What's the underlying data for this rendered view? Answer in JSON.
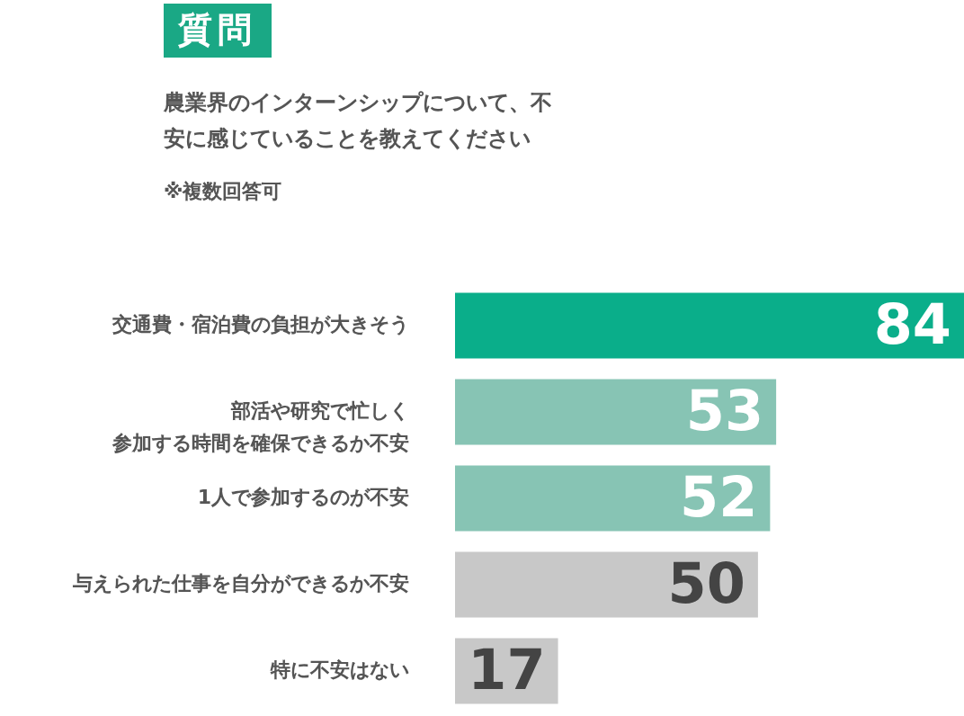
{
  "chart_data": {
    "type": "bar",
    "orientation": "horizontal",
    "title": "農業界のインターンシップについて、不安に感じていることを教えてください",
    "subtitle": "※複数回答可",
    "annotations": [
      "質問"
    ],
    "categories": [
      "交通費・宿泊費の負担が大きそう",
      "部活や研究で忙しく参加する時間を確保できるか不安",
      "1人で参加するのが不安",
      "与えられた仕事を自分ができるか不安",
      "特に不安はない"
    ],
    "values": [
      84,
      53,
      52,
      50,
      17
    ],
    "colors": [
      "#0aae8a",
      "#87c4b4",
      "#87c4b4",
      "#c8c8c8",
      "#c8c8c8"
    ],
    "data_labels": true
  }
}
